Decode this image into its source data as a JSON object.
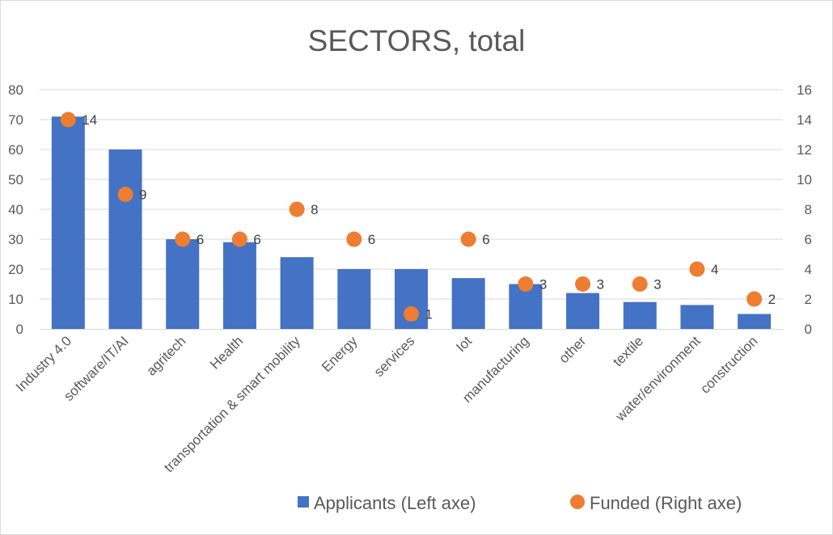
{
  "chart_data": {
    "type": "bar",
    "title": "SECTORS, total",
    "categories": [
      "Industry 4.0",
      "software/IT/AI",
      "agritech",
      "Health",
      "transportation & smart mobility",
      "Energy",
      "services",
      "Iot",
      "manufacturing",
      "other",
      "textile",
      "water/environment",
      "construction"
    ],
    "series": [
      {
        "name": "Applicants (Left axe)",
        "type": "bar",
        "axis": "left",
        "color": "#4472c4",
        "values": [
          71,
          60,
          30,
          29,
          24,
          20,
          20,
          17,
          15,
          12,
          9,
          8,
          5
        ]
      },
      {
        "name": "Funded (Right axe)",
        "type": "scatter",
        "axis": "right",
        "color": "#ed7d31",
        "values": [
          14,
          9,
          6,
          6,
          8,
          6,
          1,
          6,
          3,
          3,
          3,
          4,
          2
        ]
      }
    ],
    "ylim_left": [
      0,
      80
    ],
    "ylim_right": [
      0,
      16
    ],
    "yticks_left": [
      "0",
      "10",
      "20",
      "30",
      "40",
      "50",
      "60",
      "70",
      "80"
    ],
    "yticks_right": [
      "0",
      "2",
      "4",
      "6",
      "8",
      "10",
      "12",
      "14",
      "16"
    ],
    "grid": true,
    "legend_position": "bottom-right"
  }
}
